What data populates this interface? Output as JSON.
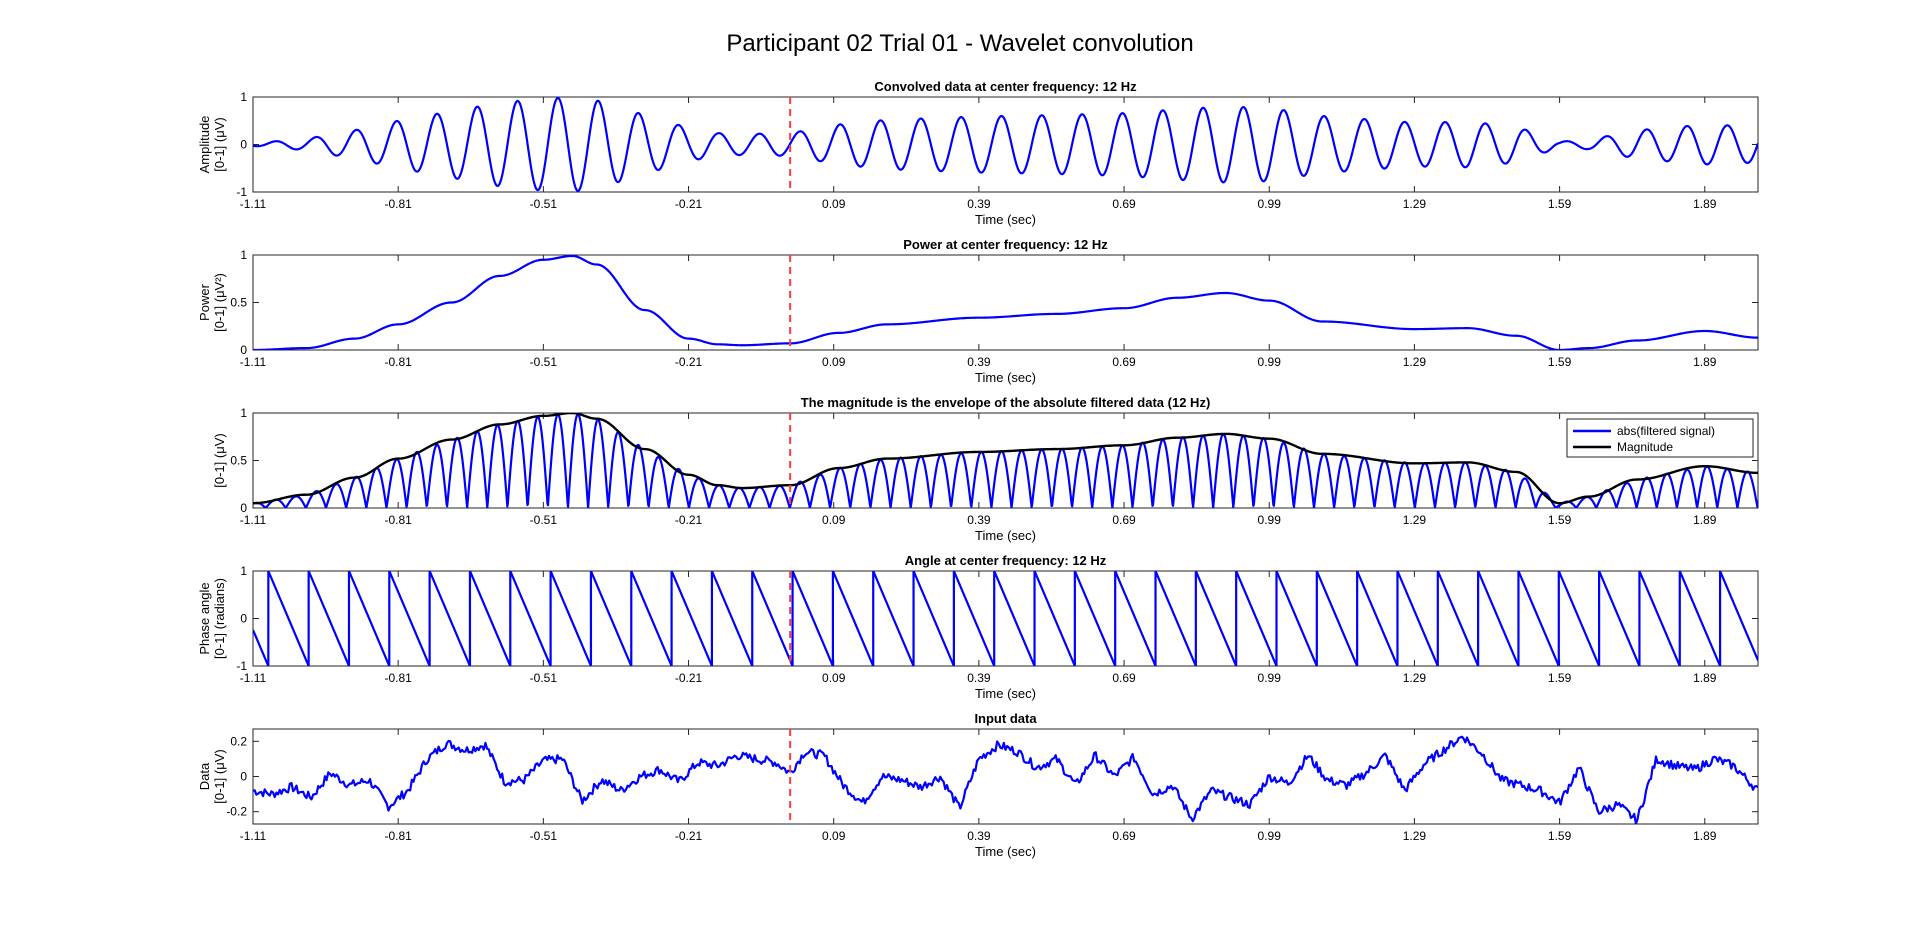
{
  "figure": {
    "title": "Participant 02 Trial 01 - Wavelet convolution"
  },
  "chart_data": [
    {
      "type": "line",
      "title": "Convolved data at center frequency: 12 Hz",
      "xlabel": "Time (sec)",
      "ylabel_lines": [
        "Amplitude",
        "[0-1] (μV)"
      ],
      "xlim": [
        -1.11,
        2.0
      ],
      "ylim": [
        -1,
        1
      ],
      "xticks": [
        -1.11,
        -0.81,
        -0.51,
        -0.21,
        0.09,
        0.39,
        0.69,
        0.99,
        1.29,
        1.59,
        1.89
      ],
      "xtick_labels": [
        "-1.11",
        "-0.81",
        "-0.51",
        "-0.21",
        "0.09",
        "0.39",
        "0.69",
        "0.99",
        "1.29",
        "1.59",
        "1.89"
      ],
      "yticks": [
        -1,
        0,
        1
      ],
      "ytick_labels": [
        "-1",
        "0",
        "1"
      ],
      "event_marker_x": 0.0,
      "series": [
        {
          "color": "#0000ff",
          "oscillation_hz": 12,
          "envelope_x": [
            -1.11,
            -1.0,
            -0.9,
            -0.81,
            -0.7,
            -0.6,
            -0.51,
            -0.45,
            -0.4,
            -0.3,
            -0.21,
            -0.15,
            -0.1,
            0.0,
            0.1,
            0.2,
            0.39,
            0.55,
            0.69,
            0.8,
            0.9,
            0.99,
            1.1,
            1.29,
            1.4,
            1.5,
            1.59,
            1.65,
            1.75,
            1.89,
            2.0
          ],
          "envelope_y": [
            0.03,
            0.12,
            0.3,
            0.5,
            0.7,
            0.88,
            0.97,
            0.99,
            0.93,
            0.62,
            0.35,
            0.24,
            0.22,
            0.24,
            0.42,
            0.52,
            0.59,
            0.62,
            0.66,
            0.74,
            0.8,
            0.77,
            0.6,
            0.46,
            0.48,
            0.38,
            0.06,
            0.1,
            0.3,
            0.42,
            0.38
          ]
        }
      ]
    },
    {
      "type": "line",
      "title": "Power at center frequency: 12 Hz",
      "xlabel": "Time (sec)",
      "ylabel_lines": [
        "Power",
        "[0-1] (μV²)"
      ],
      "xlim": [
        -1.11,
        2.0
      ],
      "ylim": [
        0,
        1
      ],
      "xticks": [
        -1.11,
        -0.81,
        -0.51,
        -0.21,
        0.09,
        0.39,
        0.69,
        0.99,
        1.29,
        1.59,
        1.89
      ],
      "xtick_labels": [
        "-1.11",
        "-0.81",
        "-0.51",
        "-0.21",
        "0.09",
        "0.39",
        "0.69",
        "0.99",
        "1.29",
        "1.59",
        "1.89"
      ],
      "yticks": [
        0,
        0.5,
        1
      ],
      "ytick_labels": [
        "0",
        "0.5",
        "1"
      ],
      "event_marker_x": 0.0,
      "series": [
        {
          "color": "#0000ff",
          "x": [
            -1.11,
            -1.0,
            -0.9,
            -0.81,
            -0.7,
            -0.6,
            -0.51,
            -0.45,
            -0.4,
            -0.3,
            -0.21,
            -0.15,
            -0.1,
            0.0,
            0.1,
            0.2,
            0.39,
            0.55,
            0.69,
            0.8,
            0.9,
            0.99,
            1.1,
            1.29,
            1.4,
            1.5,
            1.59,
            1.65,
            1.75,
            1.89,
            2.0
          ],
          "y": [
            0.0,
            0.02,
            0.12,
            0.27,
            0.5,
            0.78,
            0.95,
            0.99,
            0.9,
            0.42,
            0.12,
            0.06,
            0.05,
            0.07,
            0.18,
            0.27,
            0.34,
            0.38,
            0.44,
            0.55,
            0.6,
            0.52,
            0.3,
            0.22,
            0.23,
            0.15,
            0.0,
            0.02,
            0.1,
            0.2,
            0.13
          ]
        }
      ]
    },
    {
      "type": "line",
      "title": "The magnitude is the envelope of the absolute filtered data (12 Hz)",
      "xlabel": "Time (sec)",
      "ylabel_lines": [
        "[0-1] (μV)"
      ],
      "xlim": [
        -1.11,
        2.0
      ],
      "ylim": [
        0,
        1
      ],
      "xticks": [
        -1.11,
        -0.81,
        -0.51,
        -0.21,
        0.09,
        0.39,
        0.69,
        0.99,
        1.29,
        1.59,
        1.89
      ],
      "xtick_labels": [
        "-1.11",
        "-0.81",
        "-0.51",
        "-0.21",
        "0.09",
        "0.39",
        "0.69",
        "0.99",
        "1.29",
        "1.59",
        "1.89"
      ],
      "yticks": [
        0,
        0.5,
        1
      ],
      "ytick_labels": [
        "0",
        "0.5",
        "1"
      ],
      "event_marker_x": 0.0,
      "legend": {
        "placement": "top-right",
        "entries": [
          "abs(filtered signal)",
          "Magnitude"
        ]
      },
      "series": [
        {
          "name": "abs(filtered signal)",
          "color": "#0000ff",
          "oscillation_hz": 12,
          "derived_from": "Magnitude"
        },
        {
          "name": "Magnitude",
          "color": "#000000",
          "x": [
            -1.11,
            -1.0,
            -0.9,
            -0.81,
            -0.7,
            -0.6,
            -0.51,
            -0.45,
            -0.4,
            -0.3,
            -0.21,
            -0.15,
            -0.1,
            0.0,
            0.1,
            0.2,
            0.39,
            0.55,
            0.69,
            0.8,
            0.9,
            0.99,
            1.1,
            1.29,
            1.4,
            1.5,
            1.59,
            1.65,
            1.75,
            1.89,
            2.0
          ],
          "y": [
            0.05,
            0.14,
            0.32,
            0.52,
            0.72,
            0.88,
            0.97,
            1.0,
            0.94,
            0.62,
            0.35,
            0.24,
            0.21,
            0.24,
            0.42,
            0.52,
            0.59,
            0.62,
            0.66,
            0.74,
            0.78,
            0.73,
            0.57,
            0.47,
            0.48,
            0.38,
            0.05,
            0.12,
            0.3,
            0.44,
            0.37
          ]
        }
      ]
    },
    {
      "type": "line",
      "title": "Angle at center frequency: 12 Hz",
      "xlabel": "Time (sec)",
      "ylabel_lines": [
        "Phase angle",
        "[0-1] (radians)"
      ],
      "xlim": [
        -1.11,
        2.0
      ],
      "ylim": [
        -1,
        1
      ],
      "xticks": [
        -1.11,
        -0.81,
        -0.51,
        -0.21,
        0.09,
        0.39,
        0.69,
        0.99,
        1.29,
        1.59,
        1.89
      ],
      "xtick_labels": [
        "-1.11",
        "-0.81",
        "-0.51",
        "-0.21",
        "0.09",
        "0.39",
        "0.69",
        "0.99",
        "1.29",
        "1.59",
        "1.89"
      ],
      "yticks": [
        -1,
        0,
        1
      ],
      "ytick_labels": [
        "-1",
        "0",
        "1"
      ],
      "event_marker_x": 0.0,
      "series": [
        {
          "color": "#0000ff",
          "shape": "sawtooth",
          "frequency_hz": 12,
          "range": [
            -1,
            1
          ]
        }
      ]
    },
    {
      "type": "line",
      "title": "Input data",
      "xlabel": "Time (sec)",
      "ylabel_lines": [
        "Data",
        "[0-1] (μV)"
      ],
      "xlim": [
        -1.11,
        2.0
      ],
      "ylim": [
        -0.27,
        0.27
      ],
      "xticks": [
        -1.11,
        -0.81,
        -0.51,
        -0.21,
        0.09,
        0.39,
        0.69,
        0.99,
        1.29,
        1.59,
        1.89
      ],
      "xtick_labels": [
        "-1.11",
        "-0.81",
        "-0.51",
        "-0.21",
        "0.09",
        "0.39",
        "0.69",
        "0.99",
        "1.29",
        "1.59",
        "1.89"
      ],
      "yticks": [
        -0.2,
        0,
        0.2
      ],
      "ytick_labels": [
        "-0.2",
        "0",
        "0.2"
      ],
      "event_marker_x": 0.0,
      "series": [
        {
          "color": "#0000ff",
          "x": [
            -1.11,
            -1.07,
            -1.03,
            -0.99,
            -0.95,
            -0.91,
            -0.87,
            -0.83,
            -0.79,
            -0.75,
            -0.71,
            -0.67,
            -0.63,
            -0.59,
            -0.55,
            -0.51,
            -0.47,
            -0.43,
            -0.39,
            -0.35,
            -0.31,
            -0.27,
            -0.23,
            -0.19,
            -0.15,
            -0.11,
            -0.07,
            -0.03,
            0.0,
            0.03,
            0.07,
            0.11,
            0.15,
            0.19,
            0.23,
            0.27,
            0.31,
            0.35,
            0.39,
            0.43,
            0.47,
            0.51,
            0.55,
            0.59,
            0.63,
            0.67,
            0.71,
            0.75,
            0.79,
            0.83,
            0.87,
            0.91,
            0.95,
            0.99,
            1.03,
            1.07,
            1.11,
            1.15,
            1.19,
            1.23,
            1.27,
            1.31,
            1.35,
            1.39,
            1.43,
            1.47,
            1.51,
            1.55,
            1.59,
            1.63,
            1.67,
            1.71,
            1.75,
            1.79,
            1.83,
            1.87,
            1.91,
            1.95,
            2.0
          ],
          "y": [
            -0.08,
            -0.1,
            -0.06,
            -0.12,
            0.02,
            -0.05,
            -0.02,
            -0.17,
            -0.08,
            0.1,
            0.19,
            0.15,
            0.18,
            -0.03,
            -0.02,
            0.09,
            0.1,
            -0.14,
            -0.02,
            -0.08,
            0.0,
            0.04,
            -0.03,
            0.08,
            0.06,
            0.12,
            0.1,
            0.08,
            0.02,
            0.14,
            0.12,
            -0.05,
            -0.15,
            0.0,
            -0.02,
            -0.06,
            0.0,
            -0.18,
            0.1,
            0.18,
            0.14,
            0.05,
            0.1,
            -0.05,
            0.12,
            0.0,
            0.11,
            -0.1,
            -0.05,
            -0.24,
            -0.08,
            -0.12,
            -0.16,
            0.0,
            -0.04,
            0.12,
            -0.02,
            -0.05,
            0.02,
            0.12,
            -0.08,
            0.07,
            0.15,
            0.23,
            0.13,
            -0.02,
            -0.05,
            -0.08,
            -0.15,
            0.05,
            -0.2,
            -0.16,
            -0.25,
            0.1,
            0.06,
            0.04,
            0.1,
            0.06,
            -0.08
          ]
        }
      ]
    }
  ]
}
